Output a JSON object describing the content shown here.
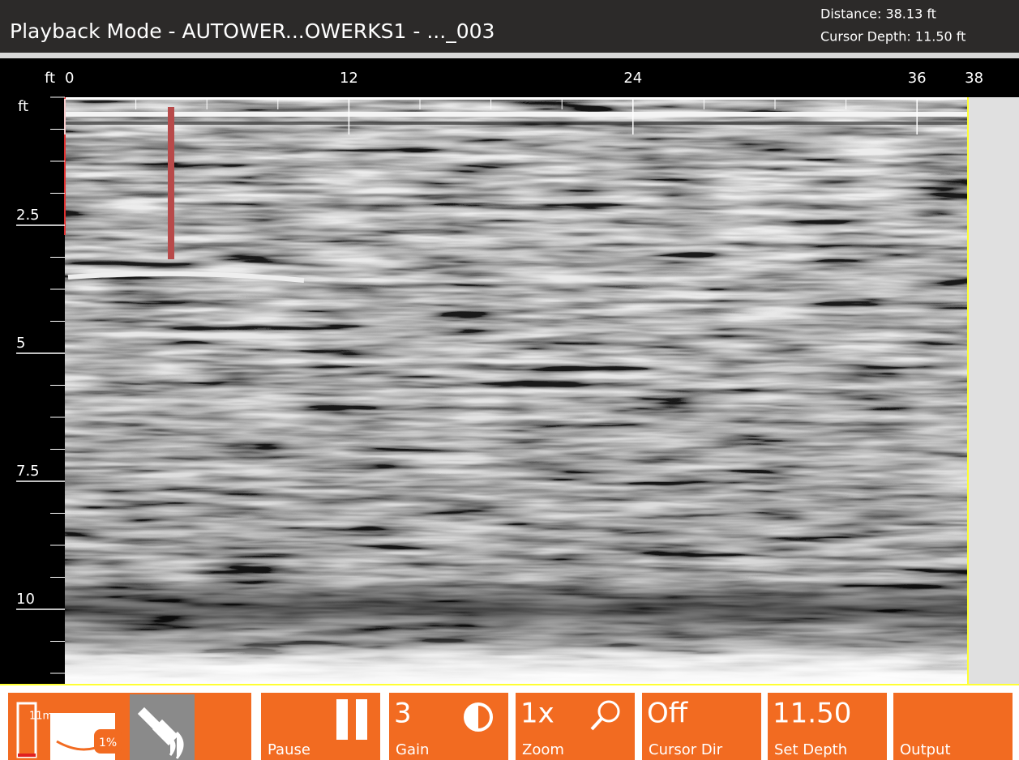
{
  "header": {
    "title": "Playback Mode - AUTOWER...OWERKS1 - ..._003",
    "distance": "Distance: 38.13 ft",
    "cursor_depth": "Cursor Depth: 11.50 ft"
  },
  "radargram": {
    "x_unit": "ft",
    "y_unit": "ft",
    "xticks": [
      0,
      12,
      24,
      36
    ],
    "x_end": 38,
    "yticks": [
      2.5,
      5,
      7.5,
      10
    ]
  },
  "toolbar": {
    "battery": "11m",
    "storage": "1%",
    "pause": "Pause",
    "gain_value": "3",
    "gain": "Gain",
    "zoom_value": "1x",
    "zoom": "Zoom",
    "cursor_dir_value": "Off",
    "cursor_dir": "Cursor Dir",
    "depth_value": "11.50",
    "set_depth": "Set Depth",
    "output": "Output"
  }
}
